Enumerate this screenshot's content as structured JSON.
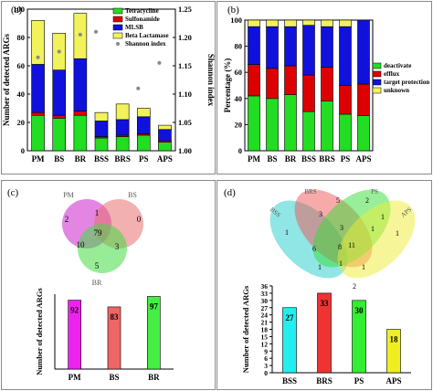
{
  "figure": {
    "a": {
      "label": "(a)",
      "chart_data": {
        "type": "bar",
        "stacked": true,
        "categories": [
          "PM",
          "BS",
          "BR",
          "BSS",
          "BRS",
          "PS",
          "APS"
        ],
        "ylabel": "Number of detected ARGs",
        "y2label": "Shannon index",
        "ylim": [
          0,
          100
        ],
        "yticks": [
          0,
          20,
          40,
          60,
          80,
          100
        ],
        "y2lim": [
          1.0,
          1.25
        ],
        "y2ticks": [
          "1.00",
          "1.05",
          "1.10",
          "1.15",
          "1.20",
          "1.25"
        ],
        "series": [
          {
            "name": "Tetracycline",
            "color": "#22dd22",
            "values": [
              25,
              23,
              25,
              9,
              10,
              11,
              6
            ]
          },
          {
            "name": "Sulfonamide",
            "color": "#dd0000",
            "values": [
              2,
              2,
              3,
              1,
              1,
              1,
              1
            ]
          },
          {
            "name": "MLSB",
            "color": "#1111dd",
            "values": [
              34,
              32,
              37,
              11,
              11,
              12,
              8
            ]
          },
          {
            "name": "Beta Lactamase",
            "color": "#f2f25a",
            "values": [
              31,
              26,
              32,
              6,
              11,
              6,
              3
            ]
          }
        ],
        "shannon_index": {
          "name": "Shannon index",
          "color": "#888888",
          "values": [
            1.165,
            1.175,
            1.205,
            1.21,
            1.205,
            1.11,
            1.155
          ]
        }
      }
    },
    "b": {
      "label": "(b)",
      "chart_data": {
        "type": "bar",
        "stacked": true,
        "categories": [
          "PM",
          "BS",
          "BR",
          "BSS",
          "BRS",
          "PS",
          "APS"
        ],
        "ylabel": "Percentage (%)",
        "ylim": [
          0,
          100
        ],
        "yticks": [
          0,
          20,
          40,
          60,
          80,
          100
        ],
        "series": [
          {
            "name": "deactivate",
            "color": "#22dd22",
            "values": [
              42,
              40,
              43,
              30,
              38,
              28,
              27
            ]
          },
          {
            "name": "efflux",
            "color": "#dd0000",
            "values": [
              24,
              23,
              22,
              28,
              26,
              22,
              24
            ]
          },
          {
            "name": "target protection",
            "color": "#1111dd",
            "values": [
              29,
              32,
              30,
              38,
              31,
              45,
              49
            ]
          },
          {
            "name": "unknown",
            "color": "#f2f25a",
            "values": [
              5,
              5,
              5,
              4,
              5,
              5,
              0
            ]
          }
        ]
      }
    },
    "c": {
      "label": "(c)",
      "venn": {
        "sets": [
          {
            "name": "PM",
            "color": "#cc22cc"
          },
          {
            "name": "BS",
            "color": "#e87070"
          },
          {
            "name": "BR",
            "color": "#44dd44"
          }
        ],
        "regions": {
          "pm_only": "2",
          "bs_only": "0",
          "br_only": "5",
          "pm_bs": "1",
          "pm_br": "10",
          "bs_br": "3",
          "all": "79"
        }
      },
      "chart_data": {
        "type": "bar",
        "categories": [
          "PM",
          "BS",
          "BR"
        ],
        "values": [
          92,
          83,
          97
        ],
        "colors": [
          "#ee22ee",
          "#ee6666",
          "#44ee44"
        ],
        "ylabel": "Number of detected ARGs"
      }
    },
    "d": {
      "label": "(d)",
      "venn": {
        "sets": [
          {
            "name": "BSS",
            "color": "#22cccc"
          },
          {
            "name": "BRS",
            "color": "#ee5555"
          },
          {
            "name": "PS",
            "color": "#33dd33"
          },
          {
            "name": "APS",
            "color": "#eeee33"
          }
        ],
        "regions": [
          "3",
          "5",
          "2",
          "1",
          "1",
          "3",
          "8",
          "1",
          "1",
          "6",
          "11",
          "1",
          "1",
          "1",
          "2"
        ]
      },
      "chart_data": {
        "type": "bar",
        "categories": [
          "BSS",
          "BRS",
          "PS",
          "APS"
        ],
        "values": [
          27,
          33,
          30,
          18
        ],
        "colors": [
          "#22eeee",
          "#ee3333",
          "#33ee33",
          "#eeee22"
        ],
        "ylabel": "Number of detected ARGs",
        "ylim": [
          0,
          36
        ],
        "yticks": [
          0,
          3,
          6,
          9,
          12,
          15,
          18,
          21,
          24,
          27,
          30,
          33,
          36
        ]
      }
    }
  }
}
